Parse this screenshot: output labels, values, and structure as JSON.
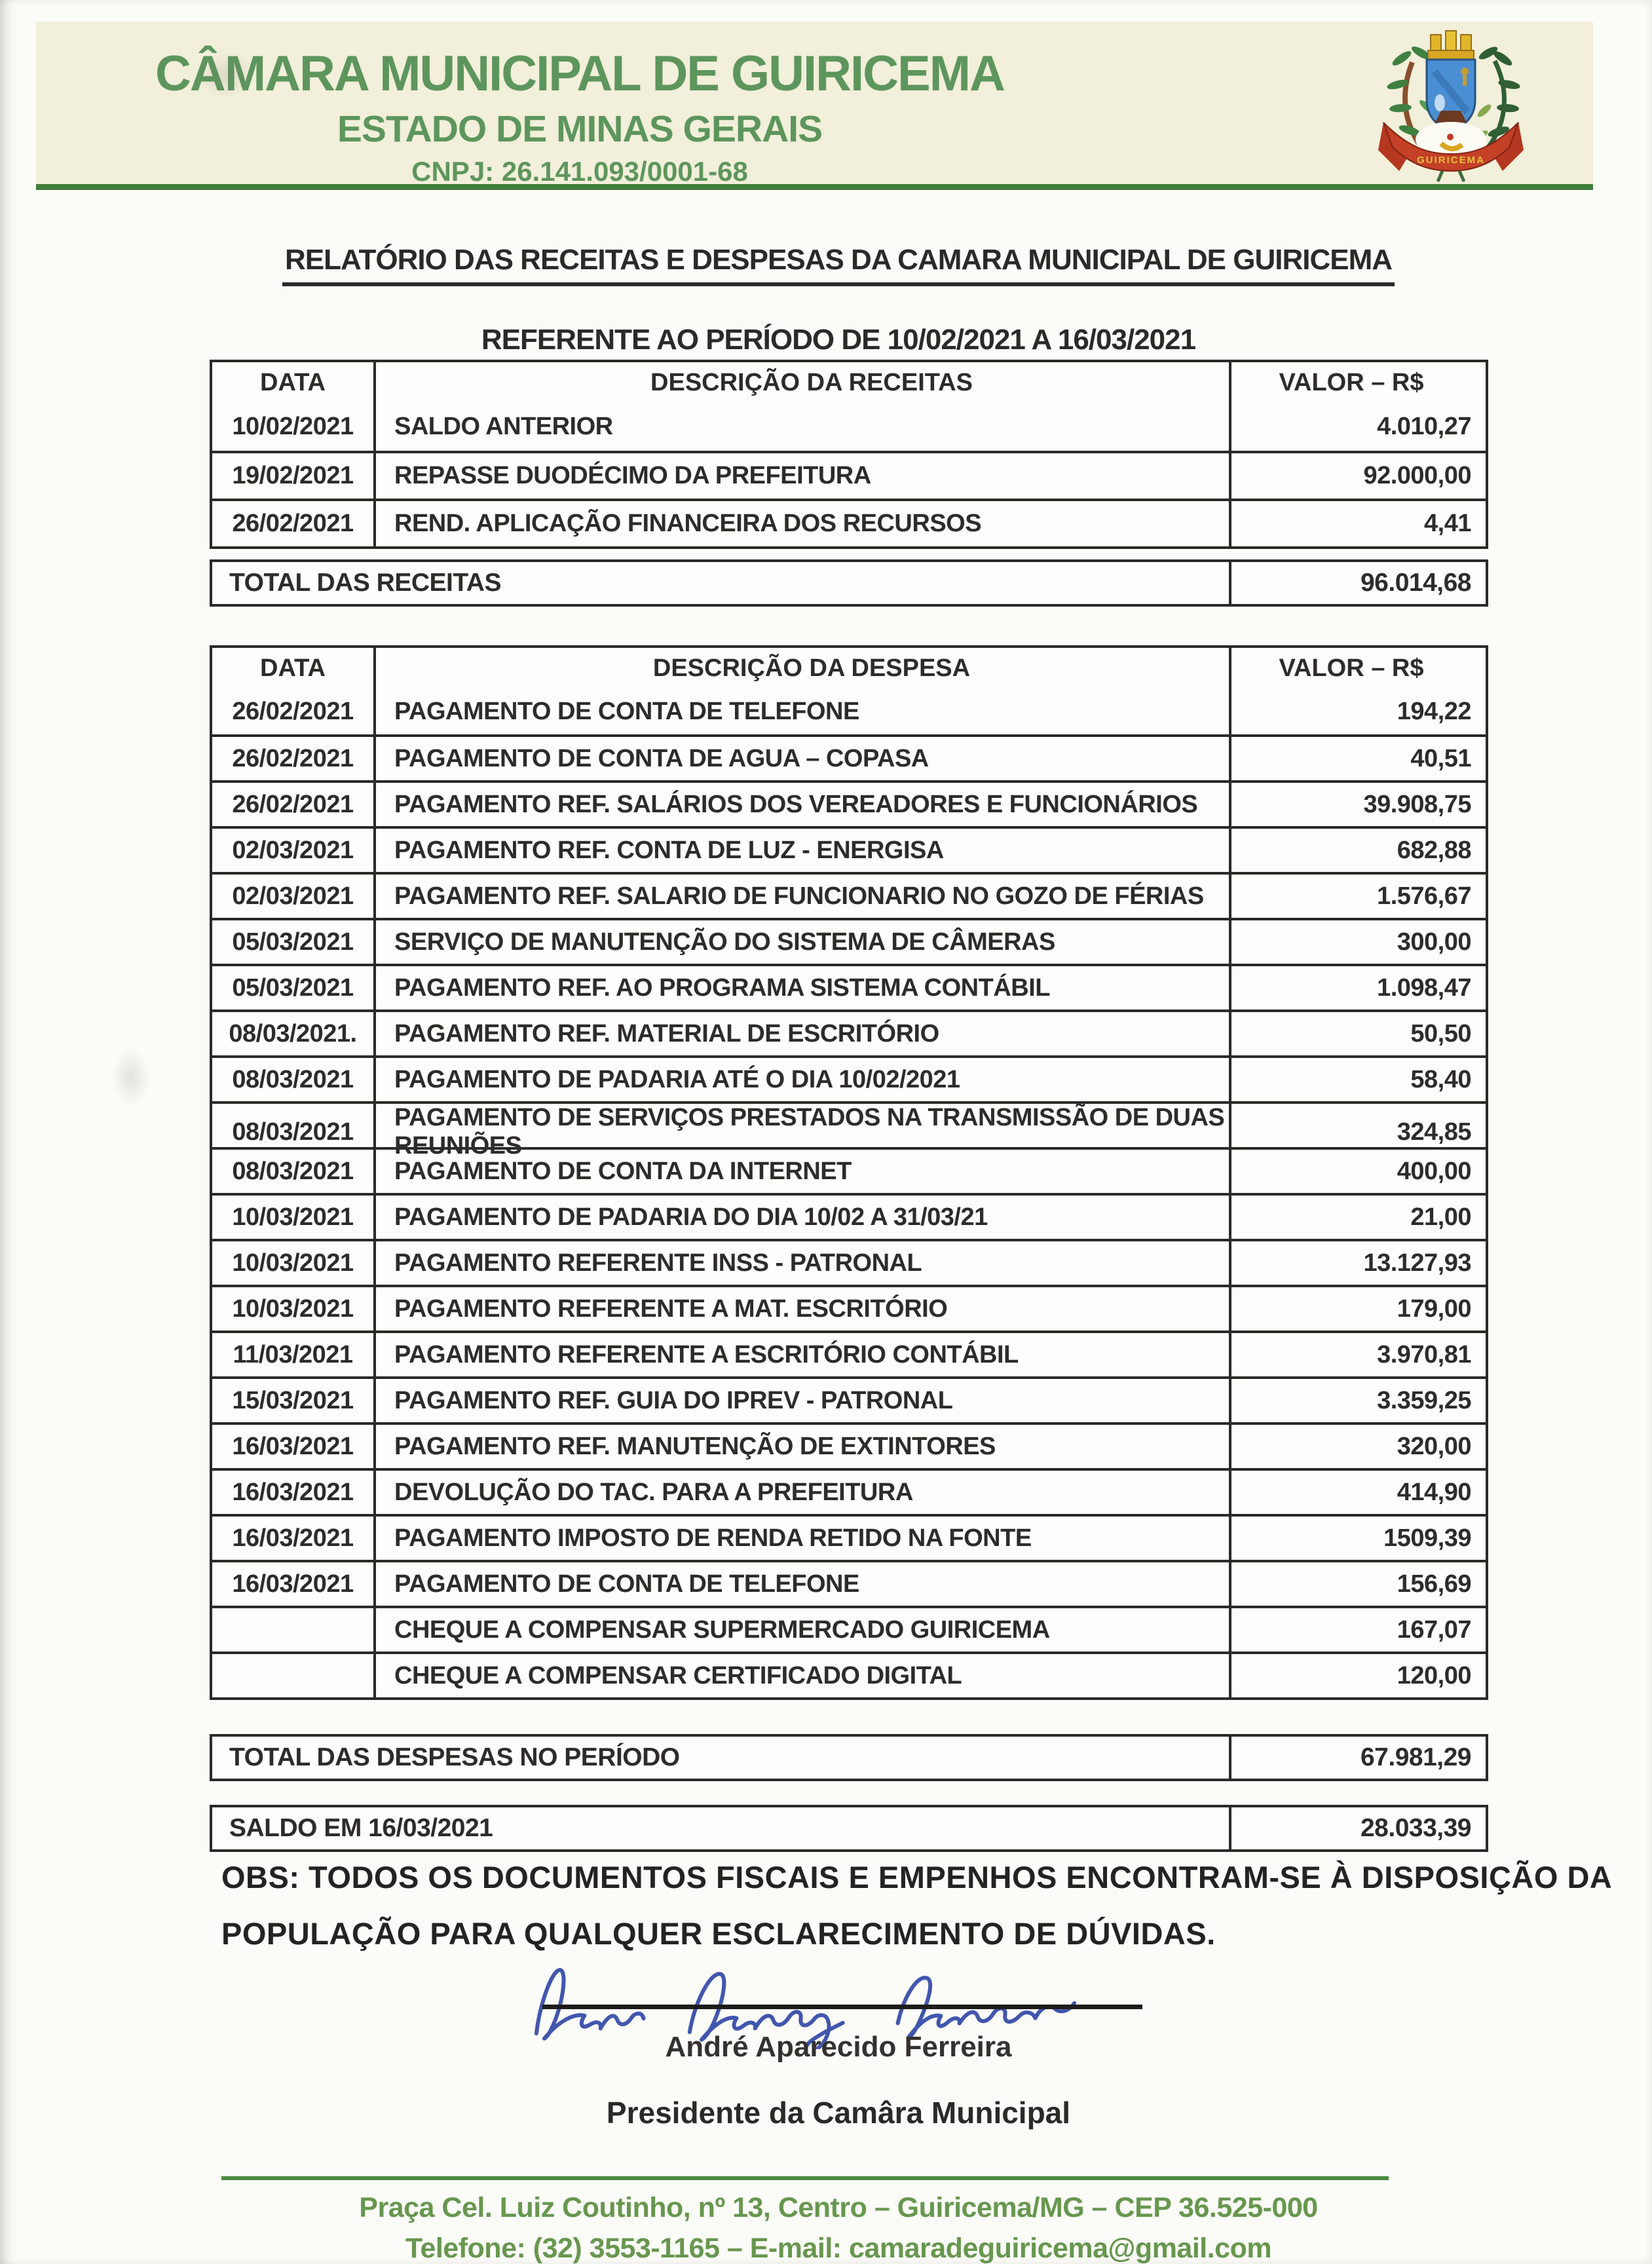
{
  "letterhead": {
    "org_name": "CÂMARA MUNICIPAL DE GUIRICEMA",
    "state_line": "ESTADO DE MINAS GERAIS",
    "cnpj_line": "CNPJ: 26.141.093/0001-68",
    "crest_banner": "GUIRICEMA",
    "text_color": "#5d965d",
    "band_bg": "#f2efda",
    "rule_color": "#3f7d3b"
  },
  "report": {
    "title_line1": "RELATÓRIO DAS RECEITAS E DESPESAS DA CAMARA MUNICIPAL DE GUIRICEMA",
    "title_line2": "REFERENTE AO PERÍODO DE 10/02/2021 A 16/03/2021"
  },
  "receipts": {
    "headers": {
      "date": "DATA",
      "description": "DESCRIÇÃO DA RECEITAS",
      "value": "VALOR – R$"
    },
    "rows": [
      {
        "date": "10/02/2021",
        "description": "SALDO ANTERIOR",
        "value": "4.010,27"
      },
      {
        "date": "19/02/2021",
        "description": "REPASSE DUODÉCIMO DA PREFEITURA",
        "value": "92.000,00"
      },
      {
        "date": "26/02/2021",
        "description": "REND. APLICAÇÃO FINANCEIRA DOS RECURSOS",
        "value": "4,41"
      }
    ],
    "total": {
      "label": "TOTAL DAS RECEITAS",
      "value": "96.014,68"
    }
  },
  "expenses": {
    "headers": {
      "date": "DATA",
      "description": "DESCRIÇÃO DA DESPESA",
      "value": "VALOR – R$"
    },
    "rows": [
      {
        "date": "26/02/2021",
        "description": "PAGAMENTO DE CONTA DE TELEFONE",
        "value": "194,22"
      },
      {
        "date": "26/02/2021",
        "description": "PAGAMENTO DE CONTA DE AGUA – COPASA",
        "value": "40,51"
      },
      {
        "date": "26/02/2021",
        "description": "PAGAMENTO REF. SALÁRIOS DOS VEREADORES E FUNCIONÁRIOS",
        "value": "39.908,75"
      },
      {
        "date": "02/03/2021",
        "description": "PAGAMENTO REF. CONTA DE LUZ - ENERGISA",
        "value": "682,88"
      },
      {
        "date": "02/03/2021",
        "description": "PAGAMENTO REF. SALARIO DE FUNCIONARIO NO GOZO DE FÉRIAS",
        "value": "1.576,67"
      },
      {
        "date": "05/03/2021",
        "description": "SERVIÇO DE MANUTENÇÃO DO SISTEMA DE CÂMERAS",
        "value": "300,00"
      },
      {
        "date": "05/03/2021",
        "description": "PAGAMENTO REF. AO PROGRAMA SISTEMA CONTÁBIL",
        "value": "1.098,47"
      },
      {
        "date": "08/03/2021.",
        "description": "PAGAMENTO REF. MATERIAL DE ESCRITÓRIO",
        "value": "50,50"
      },
      {
        "date": "08/03/2021",
        "description": "PAGAMENTO DE PADARIA ATÉ O DIA 10/02/2021",
        "value": "58,40"
      },
      {
        "date": "08/03/2021",
        "description": "PAGAMENTO DE SERVIÇOS PRESTADOS NA TRANSMISSÃO DE DUAS REUNIÕES",
        "value": "324,85"
      },
      {
        "date": "08/03/2021",
        "description": "PAGAMENTO DE CONTA DA INTERNET",
        "value": "400,00"
      },
      {
        "date": "10/03/2021",
        "description": "PAGAMENTO DE PADARIA DO DIA 10/02 A 31/03/21",
        "value": "21,00"
      },
      {
        "date": "10/03/2021",
        "description": "PAGAMENTO REFERENTE INSS - PATRONAL",
        "value": "13.127,93"
      },
      {
        "date": "10/03/2021",
        "description": "PAGAMENTO REFERENTE A MAT. ESCRITÓRIO",
        "value": "179,00"
      },
      {
        "date": "11/03/2021",
        "description": "PAGAMENTO REFERENTE A ESCRITÓRIO CONTÁBIL",
        "value": "3.970,81"
      },
      {
        "date": "15/03/2021",
        "description": "PAGAMENTO REF. GUIA DO IPREV - PATRONAL",
        "value": "3.359,25"
      },
      {
        "date": "16/03/2021",
        "description": "PAGAMENTO REF. MANUTENÇÃO DE EXTINTORES",
        "value": "320,00"
      },
      {
        "date": "16/03/2021",
        "description": "DEVOLUÇÃO DO TAC. PARA A PREFEITURA",
        "value": "414,90"
      },
      {
        "date": "16/03/2021",
        "description": "PAGAMENTO  IMPOSTO DE RENDA RETIDO NA FONTE",
        "value": "1509,39"
      },
      {
        "date": "16/03/2021",
        "description": "PAGAMENTO DE CONTA DE TELEFONE",
        "value": "156,69"
      },
      {
        "date": "",
        "description": "CHEQUE A COMPENSAR SUPERMERCADO GUIRICEMA",
        "value": "167,07"
      },
      {
        "date": "",
        "description": "CHEQUE A COMPENSAR CERTIFICADO DIGITAL",
        "value": "120,00"
      }
    ],
    "total": {
      "label": "TOTAL DAS DESPESAS NO PERÍODO",
      "value": "67.981,29"
    }
  },
  "balance": {
    "label": "SALDO EM 16/03/2021",
    "value": "28.033,39"
  },
  "observation": {
    "line1": "OBS: TODOS OS DOCUMENTOS FISCAIS E EMPENHOS ENCONTRAM-SE À DISPOSIÇÃO DA",
    "line2": "POPULAÇÃO PARA QUALQUER ESCLARECIMENTO DE DÚVIDAS."
  },
  "signature": {
    "name": "André Aparecido Ferreira",
    "role": "Presidente da Camâra Municipal",
    "ink_color": "#4156ae"
  },
  "footer": {
    "address": "Praça Cel. Luiz Coutinho, nº 13, Centro – Guiricema/MG – CEP 36.525-000",
    "contact": "Telefone: (32) 3553-1165 – E-mail: camaradeguiricema@gmail.com",
    "text_color": "#67974e",
    "rule_color": "#4c8a42"
  }
}
